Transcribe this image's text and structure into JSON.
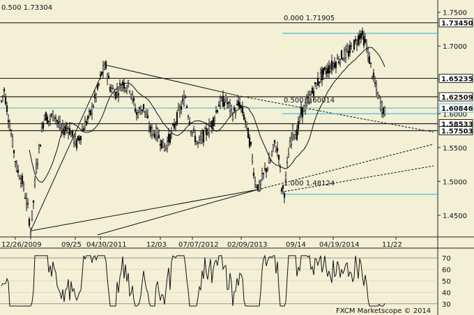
{
  "chart_data": {
    "type": "candlestick",
    "symbol_pair_hint": "",
    "y_ticks": [
      "1.7500",
      "1.7000",
      "1.6500",
      "1.6000",
      "1.5500",
      "1.5000",
      "1.4500"
    ],
    "x_ticks": [
      "12/26/2009",
      "09/25",
      "04/30/2011",
      "12/03",
      "07/07/2012",
      "02/09/2013",
      "09/14",
      "04/19/2014",
      "11/22"
    ],
    "ylim": [
      1.42,
      1.762
    ],
    "price_levels": [
      {
        "value": 1.7345,
        "label": "1.73450",
        "style": "boxed",
        "color": "#222222"
      },
      {
        "value": 1.65235,
        "label": "1.65235",
        "style": "boxed",
        "color": "#222222"
      },
      {
        "value": 1.62509,
        "label": "1.62509",
        "style": "boxed",
        "color": "#222222"
      },
      {
        "value": 1.60846,
        "label": "1.60846",
        "style": "boxed",
        "color": "#55bbcc"
      },
      {
        "value": 1.58533,
        "label": "1.58533",
        "style": "boxed",
        "color": "#222222"
      },
      {
        "value": 1.57503,
        "label": "1.57503",
        "style": "boxed",
        "color": "#222222"
      }
    ],
    "fib_annotations": [
      {
        "text": "0.500  1.73304",
        "anchor": "top-left"
      },
      {
        "text": "0.000  1.71905",
        "anchor": "upper"
      },
      {
        "text": "0.500  1.60014",
        "anchor": "middle"
      },
      {
        "text": "1.000  1.48124",
        "anchor": "lower"
      }
    ],
    "rsi": {
      "y_ticks": [
        "70",
        "60",
        "50",
        "40",
        "30"
      ],
      "ylim": [
        25,
        75
      ],
      "reference_levels": [
        70,
        30
      ]
    },
    "watermark": "FXCM Marketscope © 2014"
  }
}
